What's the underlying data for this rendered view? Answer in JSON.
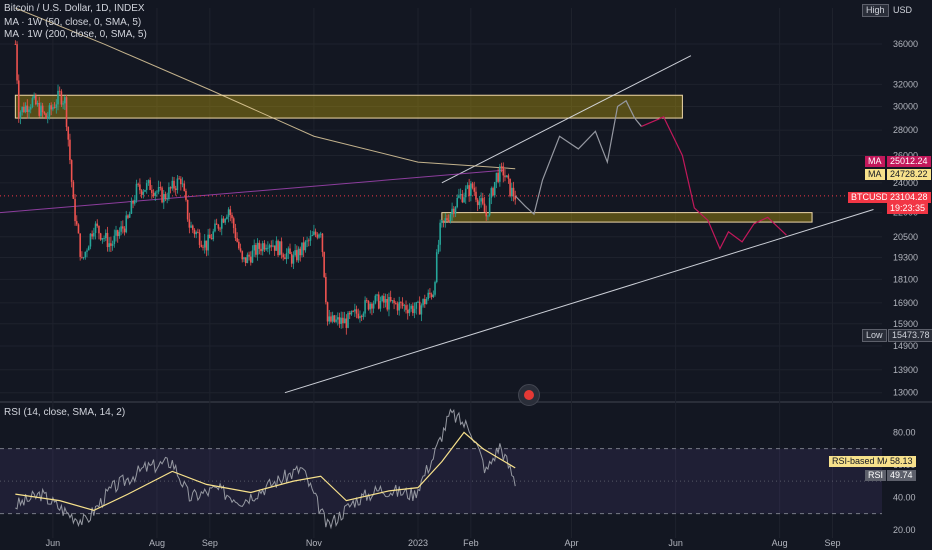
{
  "legend": {
    "symbol": "Bitcoin / U.S. Dollar, 1D, INDEX",
    "ma50": "MA · 1W (50, close, 0, SMA, 5)",
    "ma200": "MA · 1W (200, close, 0, SMA, 5)",
    "rsi": "RSI (14, close, SMA, 14, 2)"
  },
  "currency": "USD",
  "tags": {
    "high": "High",
    "low": "Low",
    "low_value": "15473.78",
    "ma1_label": "MA",
    "ma1_value": "25012.24",
    "ma2_label": "MA",
    "ma2_value": "24728.22",
    "btc_label": "BTCUSD",
    "btc_value": "23104.28",
    "countdown": "19:23:35",
    "rsi_ma_label": "RSI-based MA",
    "rsi_ma_value": "58.13",
    "rsi_label": "RSI",
    "rsi_value": "49.74"
  },
  "colors": {
    "background": "#131722",
    "up": "#26a69a",
    "down": "#ef5350",
    "ma50": "#f0d9a8",
    "ma200": "#ab47bc",
    "zone": "#d4b106",
    "projection_past": "#9598a1",
    "projection_future": "#c2185b",
    "price_tag": "#f23645",
    "rsi_line": "#9598a1",
    "rsi_ma": "#f7e18b"
  },
  "chart_data": [
    {
      "type": "candlestick",
      "title": "Bitcoin / U.S. Dollar, 1D, INDEX",
      "x_ticks": [
        "Jun",
        "Aug",
        "Sep",
        "Nov",
        "2023",
        "Feb",
        "Apr",
        "Jun",
        "Aug",
        "Sep"
      ],
      "y_ticks": [
        13000,
        13900,
        14900,
        15900,
        16900,
        18100,
        19300,
        20500,
        22000,
        24000,
        26000,
        28000,
        30000,
        32000,
        36000
      ],
      "ylim": [
        12800,
        40000
      ],
      "y_scale": "log",
      "price_path": [
        [
          "2022-05-10",
          36000
        ],
        [
          "2022-05-12",
          29500
        ],
        [
          "2022-05-20",
          30500
        ],
        [
          "2022-05-28",
          29000
        ],
        [
          "2022-06-05",
          31000
        ],
        [
          "2022-06-08",
          30500
        ],
        [
          "2022-06-13",
          22500
        ],
        [
          "2022-06-18",
          19000
        ],
        [
          "2022-06-25",
          21200
        ],
        [
          "2022-07-05",
          20000
        ],
        [
          "2022-07-15",
          21500
        ],
        [
          "2022-07-20",
          23500
        ],
        [
          "2022-07-28",
          23800
        ],
        [
          "2022-08-05",
          23000
        ],
        [
          "2022-08-15",
          24300
        ],
        [
          "2022-08-20",
          21200
        ],
        [
          "2022-08-30",
          20000
        ],
        [
          "2022-09-12",
          22300
        ],
        [
          "2022-09-20",
          19000
        ],
        [
          "2022-10-05",
          20300
        ],
        [
          "2022-10-20",
          19200
        ],
        [
          "2022-11-05",
          21000
        ],
        [
          "2022-11-09",
          16000
        ],
        [
          "2022-11-20",
          16000
        ],
        [
          "2022-12-05",
          17000
        ],
        [
          "2022-12-20",
          16800
        ],
        [
          "2023-01-01",
          16600
        ],
        [
          "2023-01-10",
          17500
        ],
        [
          "2023-01-14",
          20900
        ],
        [
          "2023-01-25",
          23000
        ],
        [
          "2023-02-02",
          23700
        ],
        [
          "2023-02-10",
          21800
        ],
        [
          "2023-02-16",
          24500
        ],
        [
          "2023-02-20",
          24800
        ],
        [
          "2023-02-24",
          23500
        ],
        [
          "2023-02-27",
          23104.28
        ]
      ],
      "series": [
        {
          "name": "MA · 1W (50, close, 0, SMA, 5)",
          "last": 25012.24
        },
        {
          "name": "MA · 1W (200, close, 0, SMA, 5)",
          "last": 24728.22
        },
        {
          "name": "BTCUSD",
          "last": 23104.28
        }
      ],
      "high_label": "High",
      "low": 15473.78,
      "zones": [
        {
          "from": "2022-05-10",
          "to": "2023-06-05",
          "low": 29000,
          "high": 31000
        },
        {
          "from": "2023-01-15",
          "to": "2023-08-20",
          "low": 21400,
          "high": 22000
        }
      ],
      "projection_grey": [
        [
          "2023-02-27",
          23104
        ],
        [
          "2023-03-05",
          22400
        ],
        [
          "2023-03-10",
          21900
        ],
        [
          "2023-03-15",
          24200
        ],
        [
          "2023-03-25",
          27500
        ],
        [
          "2023-04-05",
          26500
        ],
        [
          "2023-04-15",
          27900
        ],
        [
          "2023-04-22",
          25500
        ],
        [
          "2023-04-28",
          30000
        ],
        [
          "2023-05-03",
          30500
        ],
        [
          "2023-05-08",
          29000
        ],
        [
          "2023-05-12",
          28300
        ]
      ],
      "projection_future": [
        [
          "2023-05-12",
          28300
        ],
        [
          "2023-05-25",
          29100
        ],
        [
          "2023-06-05",
          26000
        ],
        [
          "2023-06-12",
          22300
        ],
        [
          "2023-06-20",
          21500
        ],
        [
          "2023-06-27",
          19800
        ],
        [
          "2023-07-02",
          20800
        ],
        [
          "2023-07-10",
          20200
        ],
        [
          "2023-07-17",
          21300
        ],
        [
          "2023-07-25",
          21700
        ],
        [
          "2023-08-05",
          20600
        ]
      ]
    },
    {
      "type": "line",
      "title": "RSI (14, close, SMA, 14, 2)",
      "y_ticks": [
        20,
        40,
        60,
        80
      ],
      "ylim": [
        15,
        95
      ],
      "bands": [
        30,
        70
      ],
      "series": [
        {
          "name": "RSI",
          "last": 49.74
        },
        {
          "name": "RSI-based MA",
          "last": 58.13
        }
      ],
      "rsi_points": [
        [
          "2022-05-10",
          35
        ],
        [
          "2022-05-25",
          42
        ],
        [
          "2022-06-10",
          30
        ],
        [
          "2022-06-20",
          25
        ],
        [
          "2022-07-05",
          45
        ],
        [
          "2022-07-25",
          58
        ],
        [
          "2022-08-10",
          62
        ],
        [
          "2022-08-20",
          40
        ],
        [
          "2022-09-05",
          45
        ],
        [
          "2022-09-20",
          38
        ],
        [
          "2022-10-05",
          47
        ],
        [
          "2022-10-25",
          58
        ],
        [
          "2022-11-09",
          22
        ],
        [
          "2022-11-25",
          38
        ],
        [
          "2022-12-10",
          45
        ],
        [
          "2022-12-30",
          42
        ],
        [
          "2023-01-10",
          65
        ],
        [
          "2023-01-20",
          92
        ],
        [
          "2023-02-01",
          82
        ],
        [
          "2023-02-10",
          56
        ],
        [
          "2023-02-18",
          72
        ],
        [
          "2023-02-27",
          49.74
        ]
      ],
      "rsi_ma_points": [
        [
          "2022-05-10",
          42
        ],
        [
          "2022-06-05",
          38
        ],
        [
          "2022-06-25",
          32
        ],
        [
          "2022-07-15",
          42
        ],
        [
          "2022-08-10",
          56
        ],
        [
          "2022-08-30",
          48
        ],
        [
          "2022-09-25",
          43
        ],
        [
          "2022-10-20",
          50
        ],
        [
          "2022-11-05",
          53
        ],
        [
          "2022-11-20",
          38
        ],
        [
          "2022-12-15",
          44
        ],
        [
          "2023-01-01",
          46
        ],
        [
          "2023-01-15",
          62
        ],
        [
          "2023-01-28",
          80
        ],
        [
          "2023-02-08",
          70
        ],
        [
          "2023-02-27",
          58.13
        ]
      ]
    }
  ]
}
